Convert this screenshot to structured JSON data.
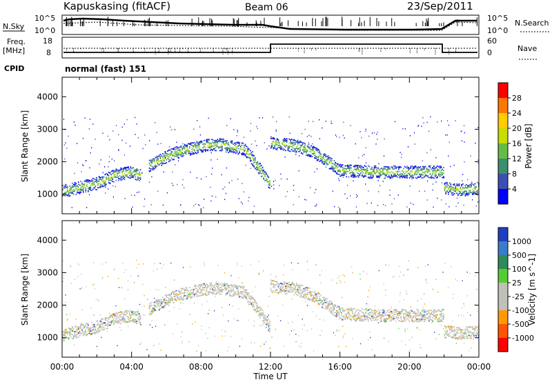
{
  "header": {
    "station": "Kapuskasing (fitACF)",
    "beam": "Beam 06",
    "date": "23/Sep/2011"
  },
  "noise_panel": {
    "left_label": "N.Sky",
    "right_label": "N.Search",
    "left_ticks": [
      "10^5",
      "10^0"
    ],
    "right_ticks": [
      "10^5",
      "10^0"
    ]
  },
  "freq_panel": {
    "left_label_line1": "Freq.",
    "left_label_line2": "[MHz]",
    "left_ticks": [
      "18",
      "8"
    ],
    "right_label": "Nave",
    "right_ticks": [
      "60",
      "0"
    ]
  },
  "cpid": {
    "label": "CPID",
    "value": "normal (fast) 151"
  },
  "x_axis": {
    "label": "Time UT",
    "ticks": [
      "00:00",
      "04:00",
      "08:00",
      "12:00",
      "16:00",
      "20:00",
      "00:00"
    ]
  },
  "chart_data": [
    {
      "type": "heatmap",
      "title": "",
      "xlabel": "Time UT",
      "ylabel": "Slant Range [km]",
      "xlim": [
        0,
        24
      ],
      "ylim": [
        400,
        4600
      ],
      "y_ticks": [
        1000,
        2000,
        3000,
        4000
      ],
      "colorbar": {
        "label": "Power [dB]",
        "ticks": [
          "28",
          "24",
          "20",
          "16",
          "12",
          "8",
          "4"
        ],
        "colors": [
          "#ff0000",
          "#ff7700",
          "#ffcc00",
          "#c8dd00",
          "#66bb44",
          "#3b8e6e",
          "#3b50b0",
          "#0000ff"
        ]
      },
      "echo_bands": [
        {
          "x": [
            0.0,
            2.0,
            3.0,
            4.0,
            4.5
          ],
          "y": [
            1100,
            1350,
            1600,
            1700,
            1600
          ]
        },
        {
          "x": [
            5.0,
            6.5,
            8.0,
            9.0,
            10.5,
            11.5,
            12.0
          ],
          "y": [
            1900,
            2300,
            2500,
            2550,
            2400,
            1700,
            1300
          ]
        },
        {
          "x": [
            12.0,
            13.5,
            14.5,
            16.0,
            18.0,
            20.0,
            22.0
          ],
          "y": [
            2600,
            2500,
            2300,
            1750,
            1700,
            1700,
            1700
          ]
        },
        {
          "x": [
            22.0,
            23.0,
            24.0
          ],
          "y": [
            1200,
            1150,
            1200
          ]
        }
      ]
    },
    {
      "type": "heatmap",
      "title": "",
      "xlabel": "Time UT",
      "ylabel": "Slant Range [km]",
      "xlim": [
        0,
        24
      ],
      "ylim": [
        400,
        4600
      ],
      "y_ticks": [
        1000,
        2000,
        3000,
        4000
      ],
      "colorbar": {
        "label": "Velocity [m s^-1]",
        "ticks": [
          "1000",
          "500",
          "100",
          "25",
          "-25",
          "-100",
          "-500",
          "-1000"
        ],
        "colors": [
          "#2040c0",
          "#3b7cc8",
          "#2e8b57",
          "#55cc33",
          "#c0c0b8",
          "#c0c0b8",
          "#ff9900",
          "#ff5500",
          "#ff0000"
        ]
      },
      "echo_bands": [
        {
          "x": [
            0.0,
            2.0,
            3.0,
            4.0,
            4.5
          ],
          "y": [
            1100,
            1350,
            1600,
            1700,
            1600
          ]
        },
        {
          "x": [
            5.0,
            6.5,
            8.0,
            9.0,
            10.5,
            11.5,
            12.0
          ],
          "y": [
            1900,
            2300,
            2500,
            2550,
            2400,
            1700,
            1300
          ]
        },
        {
          "x": [
            12.0,
            13.5,
            14.5,
            16.0,
            18.0,
            20.0,
            22.0
          ],
          "y": [
            2600,
            2500,
            2300,
            1750,
            1700,
            1700,
            1700
          ]
        },
        {
          "x": [
            22.0,
            23.0,
            24.0
          ],
          "y": [
            1200,
            1150,
            1200
          ]
        }
      ]
    }
  ]
}
